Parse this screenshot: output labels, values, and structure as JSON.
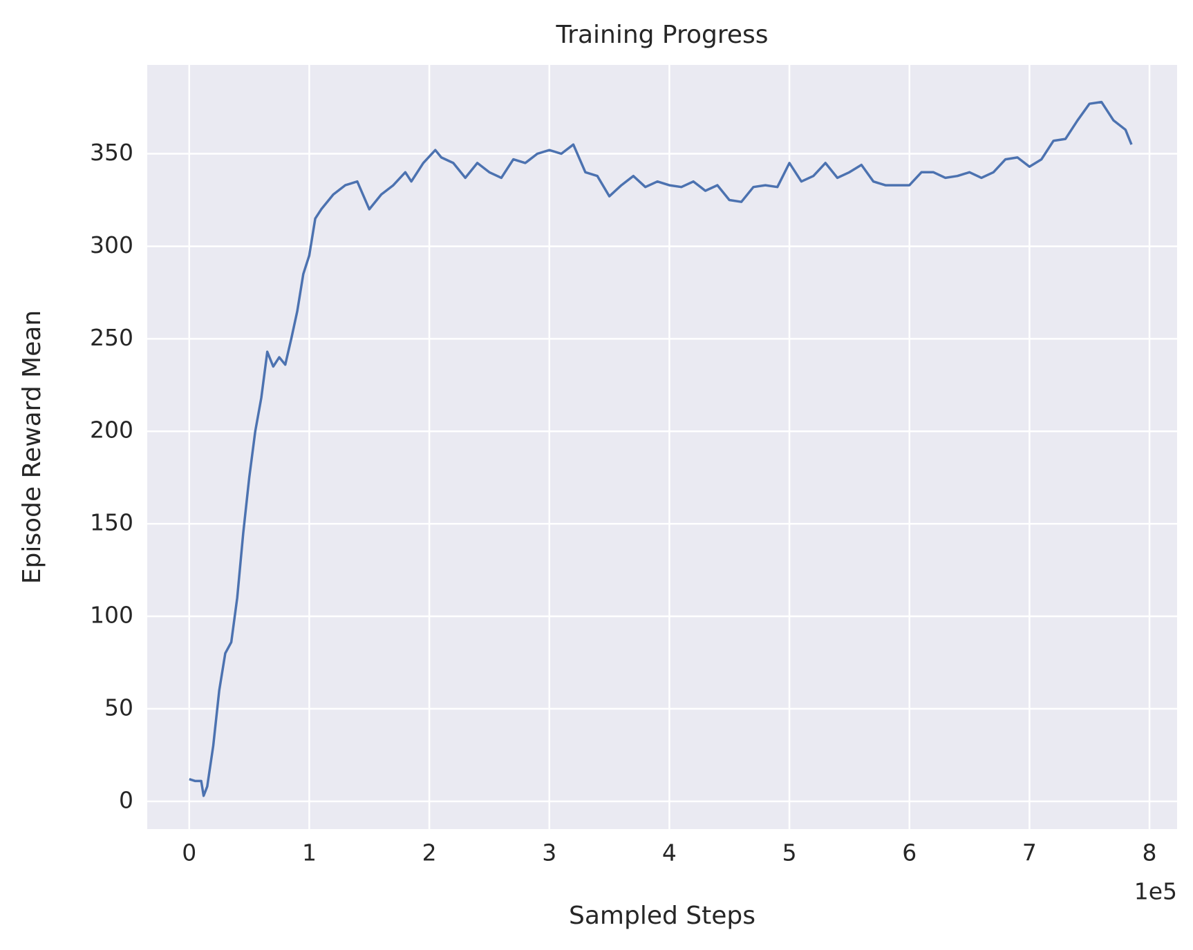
{
  "chart_data": {
    "type": "line",
    "title": "Training Progress",
    "xlabel": "Sampled Steps",
    "ylabel": "Episode Reward Mean",
    "x_offset_label": "1e5",
    "x": [
      0,
      5000,
      10000,
      12000,
      15000,
      20000,
      25000,
      30000,
      35000,
      40000,
      45000,
      50000,
      55000,
      60000,
      65000,
      70000,
      75000,
      80000,
      85000,
      90000,
      95000,
      100000,
      105000,
      110000,
      120000,
      130000,
      140000,
      150000,
      160000,
      170000,
      180000,
      185000,
      195000,
      205000,
      210000,
      220000,
      230000,
      240000,
      250000,
      260000,
      270000,
      280000,
      290000,
      300000,
      310000,
      320000,
      330000,
      340000,
      350000,
      360000,
      370000,
      380000,
      390000,
      400000,
      410000,
      420000,
      430000,
      440000,
      450000,
      460000,
      470000,
      480000,
      490000,
      500000,
      510000,
      520000,
      530000,
      540000,
      550000,
      560000,
      570000,
      580000,
      590000,
      600000,
      610000,
      620000,
      630000,
      640000,
      650000,
      660000,
      670000,
      680000,
      690000,
      700000,
      710000,
      720000,
      730000,
      740000,
      750000,
      760000,
      770000,
      780000,
      785000
    ],
    "series": [
      {
        "name": "Episode Reward Mean",
        "color": "#4c72b0",
        "values": [
          12,
          11,
          11,
          3,
          8,
          30,
          60,
          80,
          86,
          110,
          145,
          175,
          200,
          218,
          243,
          235,
          240,
          236,
          250,
          265,
          285,
          295,
          315,
          320,
          328,
          333,
          335,
          320,
          328,
          333,
          340,
          335,
          345,
          352,
          348,
          345,
          337,
          345,
          340,
          337,
          347,
          345,
          350,
          352,
          350,
          355,
          340,
          338,
          327,
          333,
          338,
          332,
          335,
          333,
          332,
          335,
          330,
          333,
          325,
          324,
          332,
          333,
          332,
          345,
          335,
          338,
          345,
          337,
          340,
          344,
          335,
          333,
          333,
          333,
          340,
          340,
          337,
          338,
          340,
          337,
          340,
          347,
          348,
          343,
          347,
          357,
          358,
          368,
          377,
          378,
          368,
          363,
          355
        ]
      }
    ],
    "xlim": [
      -35000,
      823000
    ],
    "ylim": [
      -15,
      398
    ],
    "xticks": [
      0,
      {
        "value": 100000,
        "label": "1"
      },
      {
        "value": 200000,
        "label": "2"
      },
      {
        "value": 300000,
        "label": "3"
      },
      {
        "value": 400000,
        "label": "4"
      },
      {
        "value": 500000,
        "label": "5"
      },
      {
        "value": 600000,
        "label": "6"
      },
      {
        "value": 700000,
        "label": "7"
      },
      {
        "value": 800000,
        "label": "8"
      }
    ],
    "yticks": [
      0,
      50,
      100,
      150,
      200,
      250,
      300,
      350
    ],
    "grid": true
  }
}
